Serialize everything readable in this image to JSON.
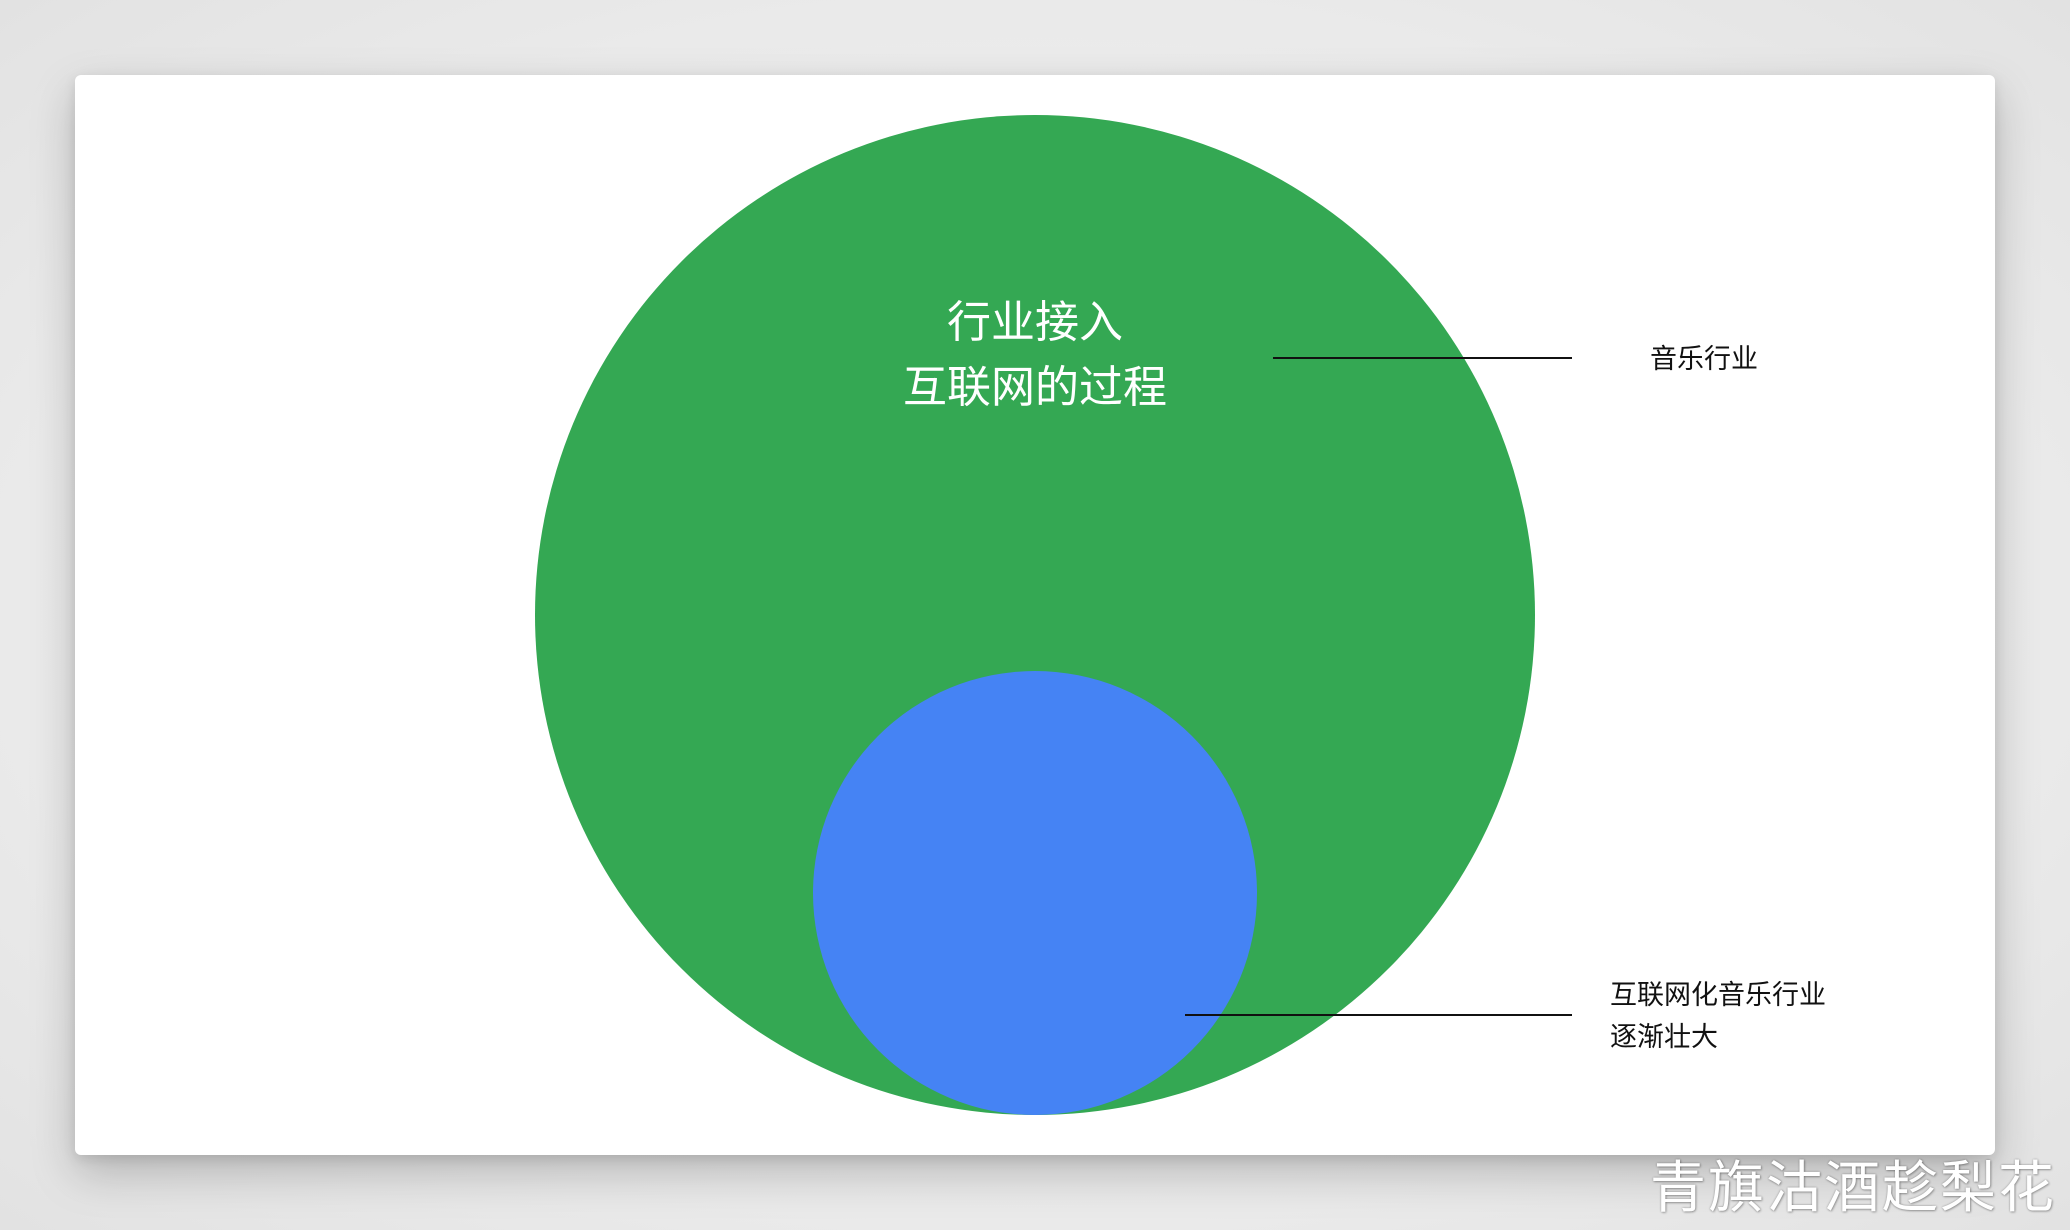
{
  "colors": {
    "outer_circle": "#34a853",
    "inner_circle": "#4583f4",
    "leader_line": "#111111",
    "title_text": "#ffffff",
    "label_text": "#111111"
  },
  "outer_circle": {
    "title_lines": [
      "行业接入",
      "互联网的过程"
    ],
    "label": "音乐行业"
  },
  "inner_circle": {
    "label_lines": [
      "互联网化音乐行业",
      "逐渐壮大"
    ]
  },
  "watermark": "青旗沽酒趁梨花"
}
